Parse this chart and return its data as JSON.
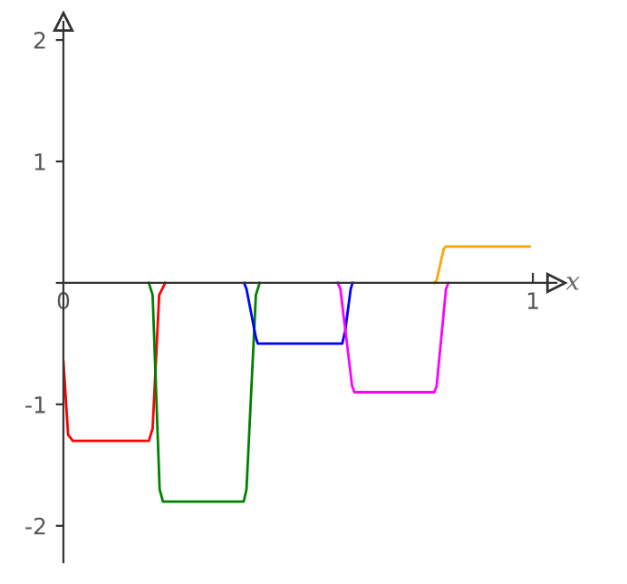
{
  "chart_data": {
    "type": "line",
    "xlabel": "x",
    "xlim": [
      0,
      1.05
    ],
    "ylim": [
      -2.3,
      2.15
    ],
    "xticks": [
      0,
      1
    ],
    "yticks": [
      -2,
      -1,
      {
        "value": 0,
        "label": null
      },
      1,
      2
    ],
    "grid": false,
    "marker": "none",
    "line_style": "solid",
    "series": [
      {
        "color": "#ff0000",
        "x": [
          0,
          0.01,
          0.02,
          0.182,
          0.19,
          0.204,
          0.217
        ],
        "values": [
          -0.65,
          -1.25,
          -1.3,
          -1.3,
          -1.2,
          -0.1,
          0
        ]
      },
      {
        "color": "#008000",
        "x": [
          0.182,
          0.19,
          0.205,
          0.212,
          0.384,
          0.39,
          0.41,
          0.418
        ],
        "values": [
          0,
          -0.1,
          -1.7,
          -1.8,
          -1.8,
          -1.7,
          -0.1,
          0
        ]
      },
      {
        "color": "#0000ff",
        "x": [
          0.385,
          0.39,
          0.41,
          0.414,
          0.594,
          0.6,
          0.612,
          0.616
        ],
        "values": [
          0,
          -0.05,
          -0.45,
          -0.5,
          -0.5,
          -0.4,
          -0.05,
          0
        ]
      },
      {
        "color": "#ff00ff",
        "x": [
          0.584,
          0.59,
          0.615,
          0.62,
          0.79,
          0.795,
          0.815,
          0.82
        ],
        "values": [
          0,
          -0.05,
          -0.85,
          -0.9,
          -0.9,
          -0.85,
          -0.05,
          0
        ]
      },
      {
        "color": "#ffa500",
        "x": [
          0.79,
          0.795,
          0.81,
          0.815,
          0.993
        ],
        "values": [
          0,
          0.02,
          0.28,
          0.3,
          0.3
        ]
      }
    ]
  }
}
